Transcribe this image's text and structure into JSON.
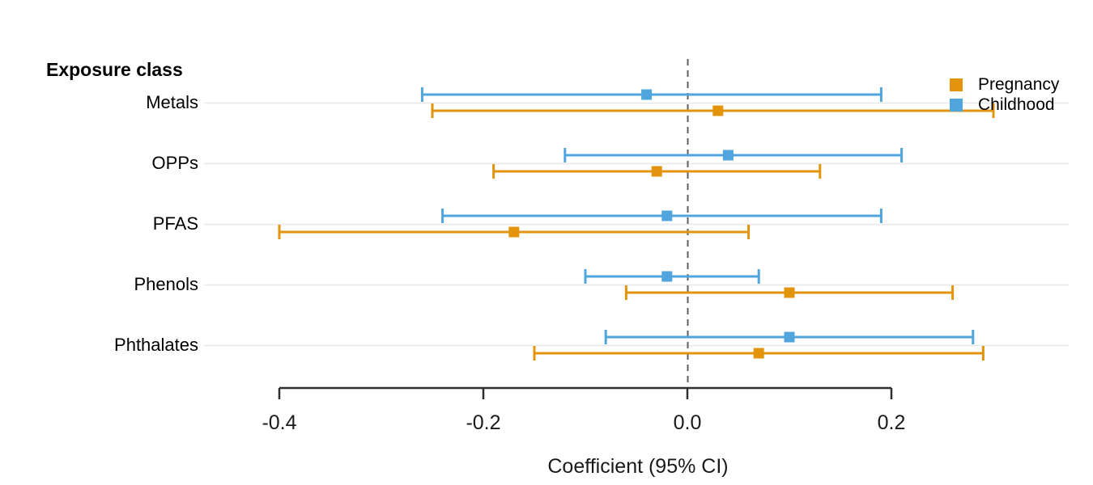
{
  "header": {
    "title": "Exposure class"
  },
  "axis": {
    "x_label": "Coefficient (95% CI)",
    "x_tick_labels": [
      "-0.4",
      "-0.2",
      "0.0",
      "0.2"
    ],
    "x_tick_values": [
      -0.4,
      -0.2,
      0.0,
      0.2
    ]
  },
  "legend": {
    "items": [
      {
        "label": "Pregnancy",
        "color": "#E2950C"
      },
      {
        "label": "Childhood",
        "color": "#4FA5DC"
      }
    ]
  },
  "chart_data": {
    "type": "scatter",
    "subtype": "forest-plot-horizontal-ci",
    "title": "Exposure class",
    "xlabel": "Coefficient (95% CI)",
    "ylabel": "",
    "categories": [
      "Metals",
      "OPPs",
      "PFAS",
      "Phenols",
      "Phthalates"
    ],
    "series": [
      {
        "name": "Pregnancy",
        "color": "#E2950C",
        "estimates": [
          0.03,
          -0.03,
          -0.17,
          0.1,
          0.07
        ],
        "ci_low": [
          -0.25,
          -0.19,
          -0.4,
          -0.06,
          -0.15
        ],
        "ci_high": [
          0.3,
          0.13,
          0.06,
          0.26,
          0.29
        ]
      },
      {
        "name": "Childhood",
        "color": "#4FA5DC",
        "estimates": [
          -0.04,
          0.04,
          -0.02,
          -0.02,
          0.1
        ],
        "ci_low": [
          -0.26,
          -0.12,
          -0.24,
          -0.1,
          -0.08
        ],
        "ci_high": [
          0.19,
          0.21,
          0.19,
          0.07,
          0.28
        ]
      }
    ],
    "x_ticks": [
      -0.4,
      -0.2,
      0.0,
      0.2
    ],
    "xlim": [
      -0.48,
      0.38
    ],
    "reference_line_x": 0.0,
    "grid": "horizontal-light-per-category",
    "legend_position": "top-right",
    "style_colors": {
      "gridline": "#E8E8E8",
      "reference_line": "#5F5F5F",
      "axis": "#2E2E2E",
      "background": "#FFFFFF"
    }
  }
}
